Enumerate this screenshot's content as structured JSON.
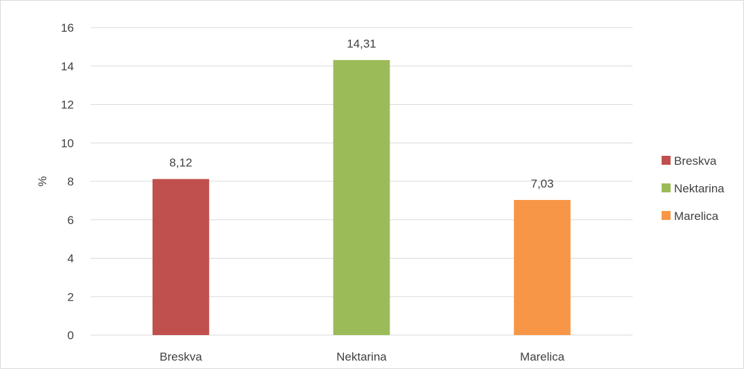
{
  "chart_data": {
    "type": "bar",
    "categories": [
      "Breskva",
      "Nektarina",
      "Marelica"
    ],
    "values": [
      8.12,
      14.31,
      7.03
    ],
    "value_labels": [
      "8,12",
      "14,31",
      "7,03"
    ],
    "colors": [
      "#c0504d",
      "#9bbb59",
      "#f79646"
    ],
    "title": "",
    "xlabel": "",
    "ylabel": "%",
    "ylim": [
      0,
      16
    ],
    "yticks": [
      0,
      2,
      4,
      6,
      8,
      10,
      12,
      14,
      16
    ],
    "grid": true,
    "legend": {
      "position": "right",
      "entries": [
        "Breskva",
        "Nektarina",
        "Marelica"
      ]
    }
  }
}
